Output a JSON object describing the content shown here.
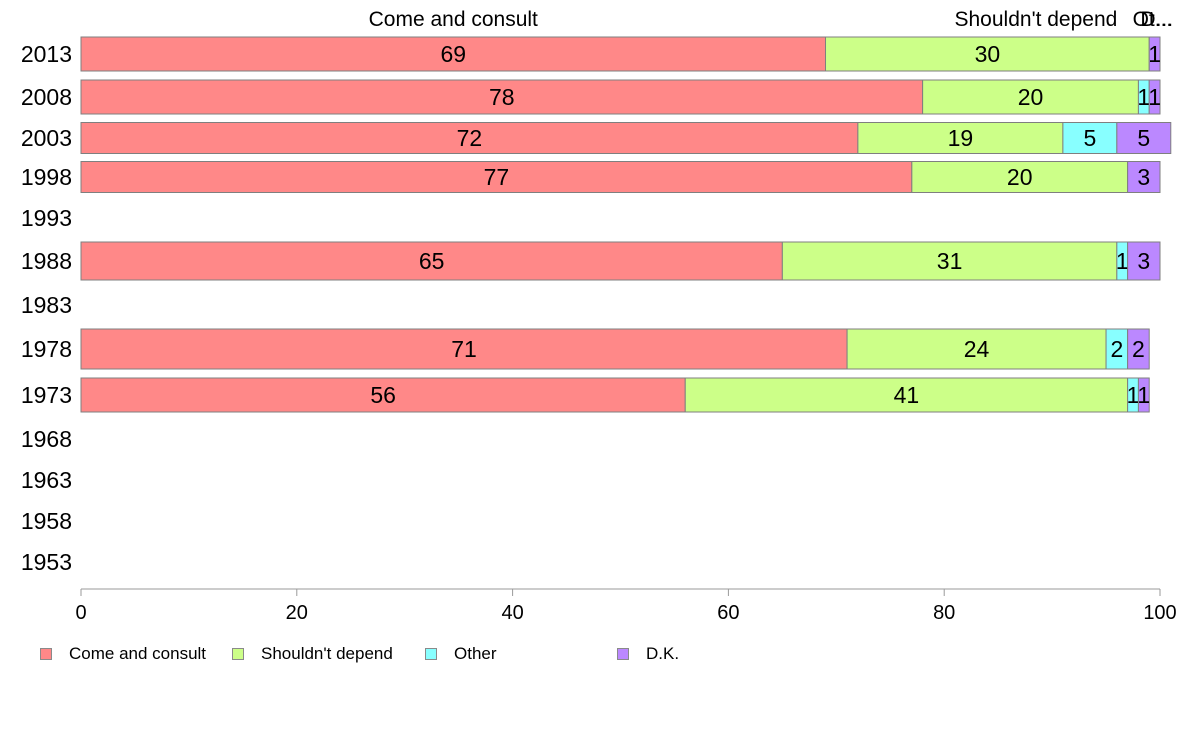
{
  "chart_data": {
    "type": "bar",
    "orientation": "horizontal",
    "stacked": true,
    "categories": [
      "2013",
      "2008",
      "2003",
      "1998",
      "1993",
      "1988",
      "1983",
      "1978",
      "1973",
      "1968",
      "1963",
      "1958",
      "1953"
    ],
    "series": [
      {
        "name": "Come and consult",
        "color": "#ff8888",
        "values": [
          69,
          78,
          72,
          77,
          null,
          65,
          null,
          71,
          56,
          null,
          null,
          null,
          null
        ]
      },
      {
        "name": "Shouldn't depend",
        "color": "#ccff88",
        "values": [
          30,
          20,
          19,
          20,
          null,
          31,
          null,
          24,
          41,
          null,
          null,
          null,
          null
        ]
      },
      {
        "name": "Other",
        "color": "#88ffff",
        "values": [
          0,
          1,
          5,
          0,
          null,
          1,
          null,
          2,
          1,
          null,
          null,
          null,
          null
        ]
      },
      {
        "name": "D.K.",
        "color": "#bb88ff",
        "values": [
          1,
          1,
          5,
          3,
          null,
          3,
          null,
          2,
          1,
          null,
          null,
          null,
          null
        ]
      }
    ],
    "top_labels": [
      "Come and consult",
      "Shouldn't depend",
      "Ot...",
      "D..."
    ],
    "xlim": [
      0,
      100
    ],
    "xticks": [
      0,
      20,
      40,
      60,
      80,
      100
    ],
    "legend_position": "bottom",
    "grid": false
  }
}
